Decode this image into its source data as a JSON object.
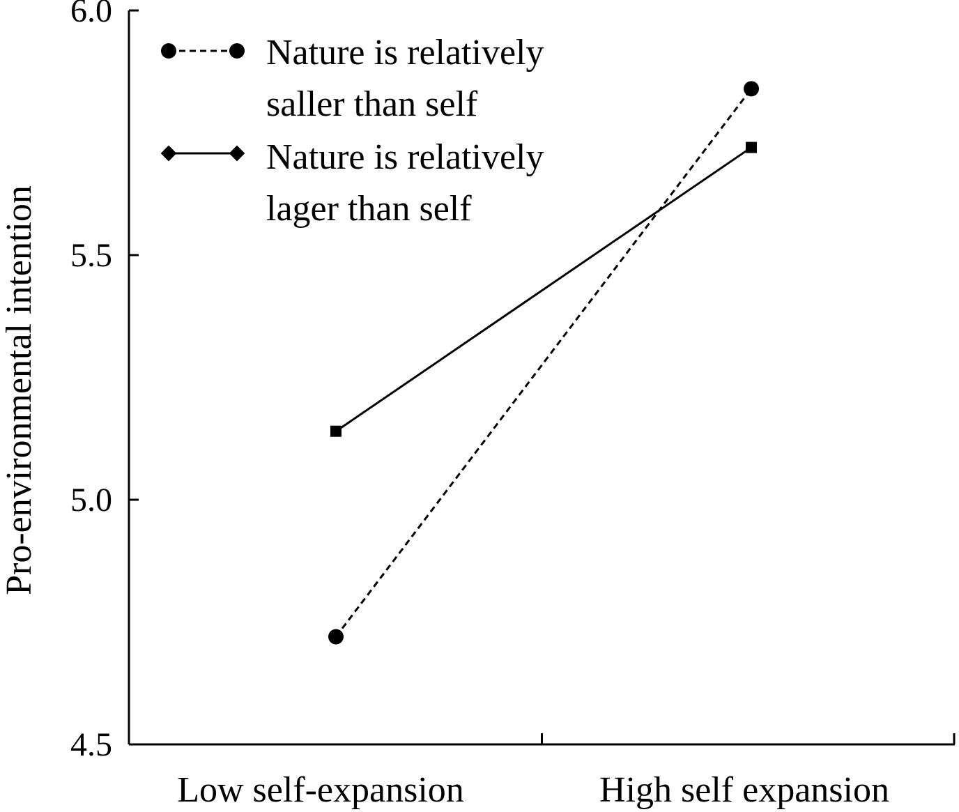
{
  "chart_data": {
    "type": "line",
    "title": "",
    "xlabel": "",
    "ylabel": "Pro-environmental intention",
    "categories": [
      "Low self-expansion",
      "High self expansion"
    ],
    "ylim": [
      4.5,
      6.0
    ],
    "yticks": [
      "4.5",
      "5.0",
      "5.5",
      "6.0"
    ],
    "grid": false,
    "legend_position": "top-left",
    "series": [
      {
        "name_lines": [
          "Nature is relatively",
          "saller than self"
        ],
        "values": [
          4.72,
          5.84
        ],
        "line_style": "dashed",
        "marker": "circle",
        "color": "#000000"
      },
      {
        "name_lines": [
          "Nature is relatively",
          "lager than self"
        ],
        "values": [
          5.14,
          5.72
        ],
        "line_style": "solid",
        "marker": "square",
        "color": "#000000"
      }
    ]
  }
}
